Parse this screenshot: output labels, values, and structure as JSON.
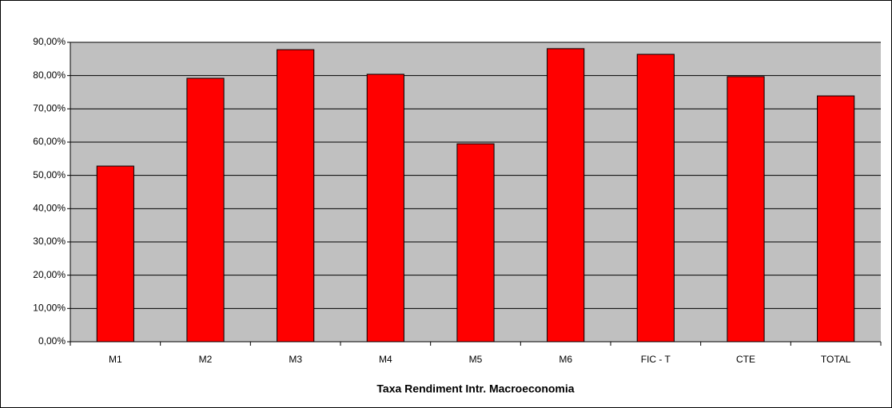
{
  "chart_data": {
    "type": "bar",
    "title": "Taxa Rendiment Intr. Macroeconomia",
    "categories": [
      "M1",
      "M2",
      "M3",
      "M4",
      "M5",
      "M6",
      "FIC - T",
      "CTE",
      "TOTAL"
    ],
    "values": [
      52.8,
      79.2,
      87.8,
      80.4,
      59.5,
      88.1,
      86.4,
      79.7,
      73.9
    ],
    "color": "#ff0000",
    "ylim": [
      0,
      90
    ],
    "yticks": [
      {
        "value": 0,
        "label": "0,00%"
      },
      {
        "value": 10,
        "label": "10,00%"
      },
      {
        "value": 20,
        "label": "20,00%"
      },
      {
        "value": 30,
        "label": "30,00%"
      },
      {
        "value": 40,
        "label": "40,00%"
      },
      {
        "value": 50,
        "label": "50,00%"
      },
      {
        "value": 60,
        "label": "60,00%"
      },
      {
        "value": 70,
        "label": "70,00%"
      },
      {
        "value": 80,
        "label": "80,00%"
      },
      {
        "value": 90,
        "label": "90,00%"
      }
    ],
    "grid": true
  }
}
